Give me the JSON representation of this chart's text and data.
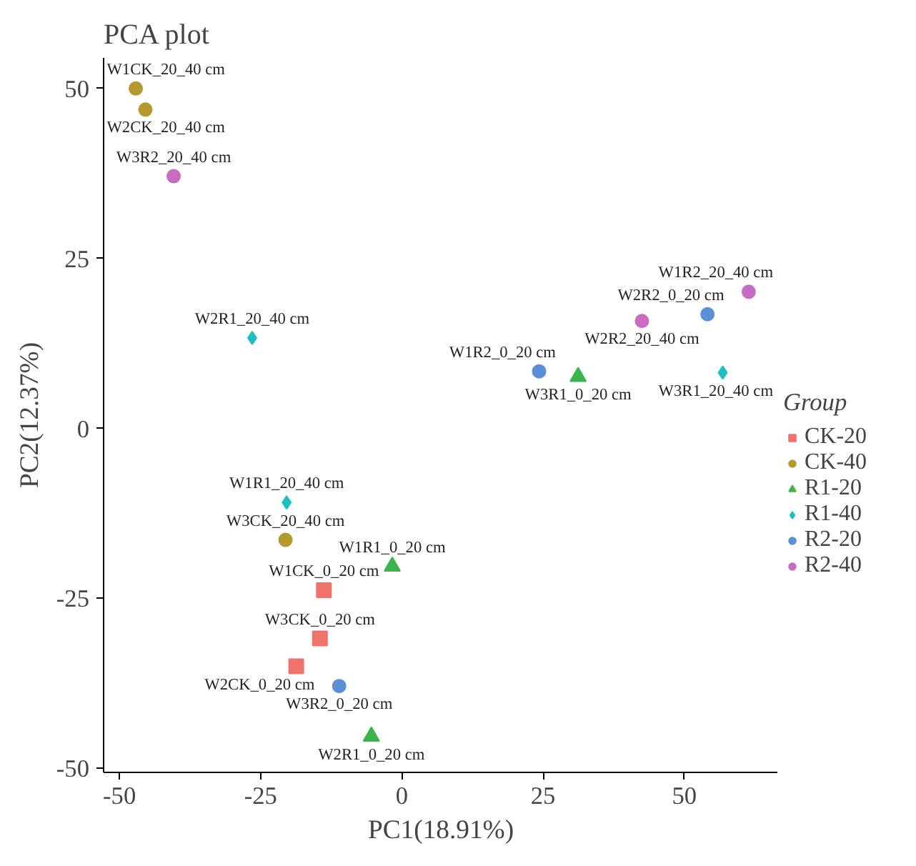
{
  "chart_data": {
    "type": "scatter",
    "title": "PCA plot",
    "xlabel": "PC1(18.91%)",
    "ylabel": "PC2(12.37%)",
    "legend_title": "Group",
    "legend": "right",
    "grid": false,
    "xlim": [
      -52.8,
      66.6
    ],
    "ylim": [
      -50.6,
      54.5
    ],
    "xticks": [
      -50,
      -25,
      0,
      25,
      50
    ],
    "yticks": [
      -50,
      -25,
      0,
      25,
      50
    ],
    "series": [
      {
        "name": "CK-20",
        "color": "#f0726b",
        "marker": "square",
        "x": [
          -13.8,
          -14.5,
          -18.7
        ],
        "values": [
          -23.8,
          -30.9,
          -35.0
        ]
      },
      {
        "name": "CK-40",
        "color": "#b39a2e",
        "marker": "circle",
        "x": [
          -47.1,
          -45.4,
          -20.6
        ],
        "values": [
          50.0,
          46.9,
          -16.4
        ]
      },
      {
        "name": "R1-20",
        "color": "#3cb44b",
        "marker": "triangle",
        "x": [
          -1.7,
          31.2,
          -5.4
        ],
        "values": [
          -20.3,
          7.6,
          -45.3
        ]
      },
      {
        "name": "R1-40",
        "color": "#1fbfbf",
        "marker": "diamond",
        "x": [
          -26.5,
          56.8,
          -20.4
        ],
        "values": [
          13.3,
          8.2,
          -10.9
        ]
      },
      {
        "name": "R2-20",
        "color": "#5b8fd6",
        "marker": "circle",
        "x": [
          24.3,
          54.1,
          -11.1
        ],
        "values": [
          8.4,
          16.8,
          -37.9
        ]
      },
      {
        "name": "R2-40",
        "color": "#c86bc2",
        "marker": "circle",
        "x": [
          -40.4,
          61.4,
          42.5
        ],
        "values": [
          37.1,
          20.1,
          15.8
        ]
      }
    ],
    "annotations": [
      {
        "text": "W1CK_20_40 cm",
        "x": -47.1,
        "y": 50.0
      },
      {
        "text": "W2CK_20_40 cm",
        "x": -45.4,
        "y": 46.9
      },
      {
        "text": "W3R2_20_40 cm",
        "x": -40.4,
        "y": 37.1
      },
      {
        "text": "W2R1_20_40 cm",
        "x": -26.5,
        "y": 13.3
      },
      {
        "text": "W1R2_20_40 cm",
        "x": 61.4,
        "y": 20.1
      },
      {
        "text": "W2R2_20_40 cm",
        "x": 42.5,
        "y": 15.8
      },
      {
        "text": "W2R2_0_20 cm",
        "x": 54.1,
        "y": 16.8
      },
      {
        "text": "W1R2_0_20 cm",
        "x": 24.3,
        "y": 8.4
      },
      {
        "text": "W3R1_0_20 cm",
        "x": 31.2,
        "y": 7.6
      },
      {
        "text": "W3R1_20_40 cm",
        "x": 56.8,
        "y": 8.2
      },
      {
        "text": "W1R1_20_40 cm",
        "x": -20.4,
        "y": -10.9
      },
      {
        "text": "W3CK_20_40 cm",
        "x": -20.6,
        "y": -16.4
      },
      {
        "text": "W1R1_0_20 cm",
        "x": -1.7,
        "y": -20.3
      },
      {
        "text": "W1CK_0_20 cm",
        "x": -13.8,
        "y": -23.8
      },
      {
        "text": "W3CK_0_20 cm",
        "x": -14.5,
        "y": -30.9
      },
      {
        "text": "W2CK_0_20 cm",
        "x": -18.7,
        "y": -35.0
      },
      {
        "text": "W3R2_0_20 cm",
        "x": -11.1,
        "y": -37.9
      },
      {
        "text": "W2R1_0_20 cm",
        "x": -5.4,
        "y": -45.3
      }
    ]
  }
}
